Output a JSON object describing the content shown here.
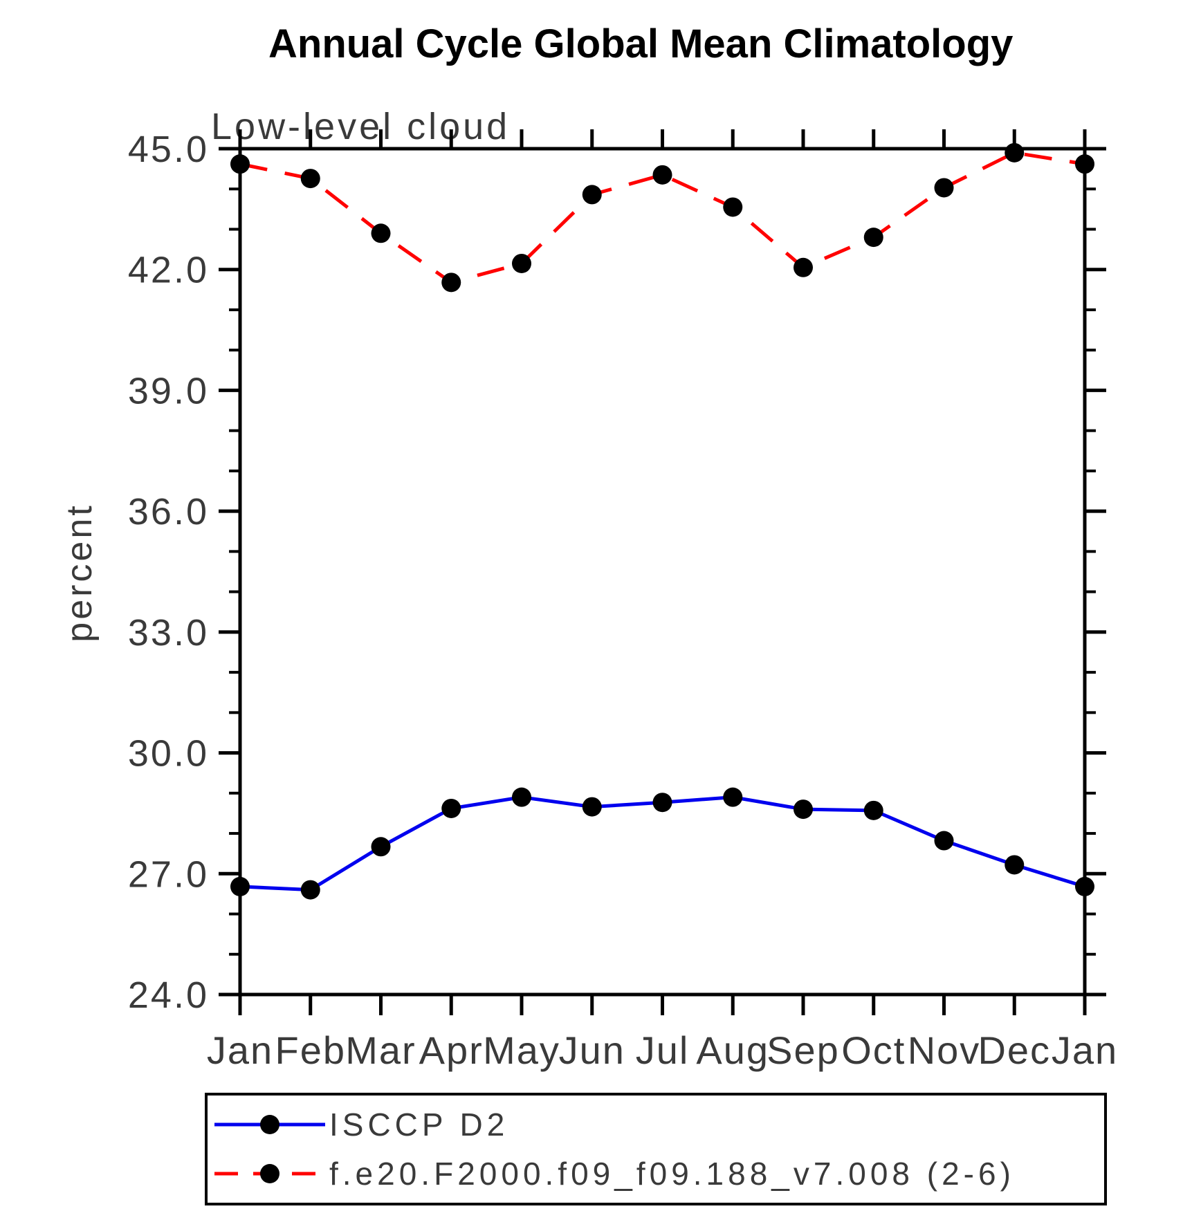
{
  "chart_data": {
    "type": "line",
    "title": "Annual Cycle Global Mean Climatology",
    "subtitle": "Low-level cloud",
    "ylabel": "percent",
    "xlabel": "",
    "categories": [
      "Jan",
      "Feb",
      "Mar",
      "Apr",
      "May",
      "Jun",
      "Jul",
      "Aug",
      "Sep",
      "Oct",
      "Nov",
      "Dec",
      "Jan"
    ],
    "series": [
      {
        "name": "ISCCP D2",
        "line_style": "solid",
        "line_color": "#0000ee",
        "marker": "filled-circle",
        "marker_color": "#000000",
        "values": [
          26.68,
          26.6,
          27.67,
          28.62,
          28.9,
          28.66,
          28.77,
          28.9,
          28.6,
          28.57,
          27.82,
          27.22,
          26.68
        ]
      },
      {
        "name": "f.e20.F2000.f09_f09.188_v7.008 (2-6)",
        "line_style": "dashed",
        "line_color": "#ff0000",
        "marker": "filled-circle",
        "marker_color": "#000000",
        "values": [
          44.62,
          44.26,
          42.9,
          41.68,
          42.15,
          43.86,
          44.35,
          43.55,
          42.05,
          42.8,
          44.03,
          44.9,
          44.62
        ]
      }
    ],
    "ylim": [
      24.0,
      45.0
    ],
    "yticks_major": {
      "values": [
        24,
        27,
        30,
        33,
        36,
        39,
        42,
        45
      ],
      "labels": [
        "24.0",
        "27.0",
        "30.0",
        "33.0",
        "36.0",
        "39.0",
        "42.0",
        "45.0"
      ]
    },
    "ytick_minor_step": 1,
    "grid": "off",
    "legend_position": "below-left",
    "axis_color": "#000000",
    "background_color": "#ffffff"
  }
}
